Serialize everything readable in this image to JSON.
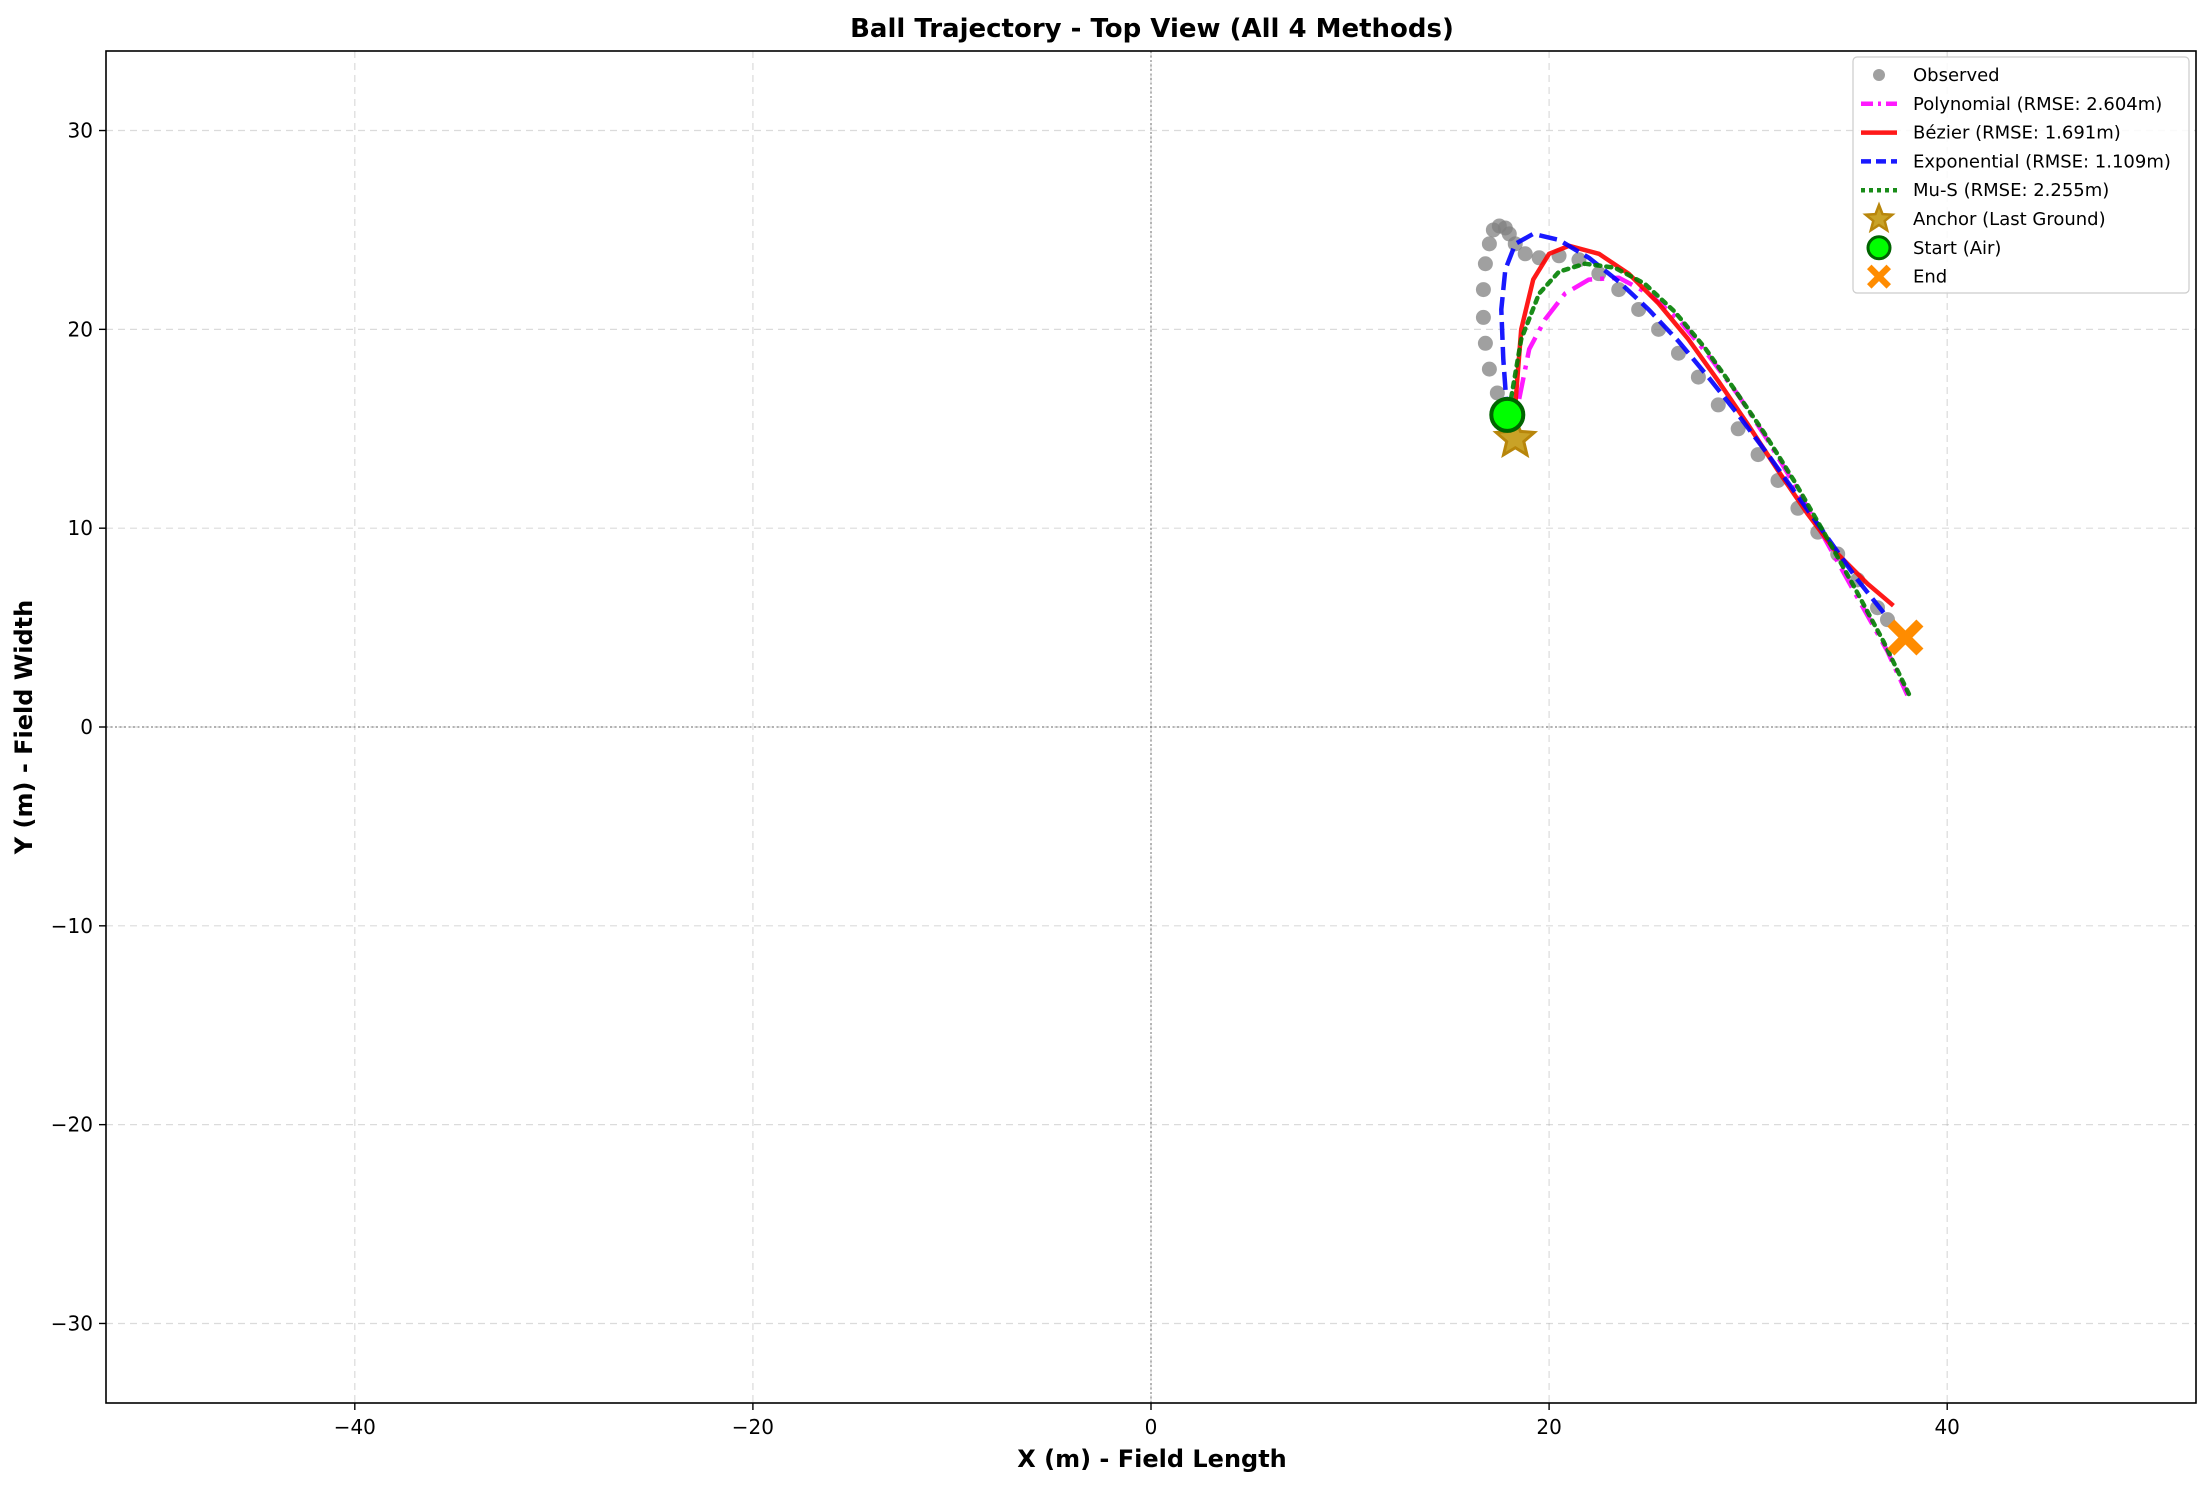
{
  "chart_data": {
    "type": "line",
    "title": "Ball Trajectory - Top View (All 4 Methods)",
    "xlabel": "X (m) - Field Length",
    "ylabel": "Y (m) - Field Width",
    "xlim": [
      -52.5,
      52.5
    ],
    "ylim": [
      -34,
      34
    ],
    "xticks": [
      -40,
      -20,
      0,
      20,
      40
    ],
    "yticks": [
      -30,
      -20,
      -10,
      0,
      10,
      20,
      30
    ],
    "grid": true,
    "legend_position": "top-right",
    "colors": {
      "observed": "#808080",
      "polynomial": "#ff00ff",
      "bezier": "#ff0000",
      "exponential": "#0000ff",
      "mus": "#008000",
      "anchor": "#b8860b",
      "start": "#00ff00",
      "end": "#ff8c00"
    },
    "legend": [
      {
        "key": "observed",
        "label": "Observed",
        "kind": "dot"
      },
      {
        "key": "polynomial",
        "label": "Polynomial (RMSE: 2.604m)",
        "kind": "line",
        "dash": "dashdot"
      },
      {
        "key": "bezier",
        "label": "Bézier (RMSE: 1.691m)",
        "kind": "line",
        "dash": "solid"
      },
      {
        "key": "exponential",
        "label": "Exponential (RMSE: 1.109m)",
        "kind": "line",
        "dash": "dashed"
      },
      {
        "key": "mus",
        "label": "Mu-S (RMSE: 2.255m)",
        "kind": "line",
        "dash": "dotted"
      },
      {
        "key": "anchor",
        "label": "Anchor (Last Ground)",
        "kind": "star"
      },
      {
        "key": "start",
        "label": "Start (Air)",
        "kind": "circle"
      },
      {
        "key": "end",
        "label": "End",
        "kind": "x"
      }
    ],
    "observed": {
      "x": [
        17.9,
        17.4,
        17.0,
        16.8,
        16.7,
        16.7,
        16.8,
        17.0,
        17.2,
        17.5,
        17.8,
        18.0,
        18.3,
        18.8,
        19.5,
        20.5,
        21.5,
        22.5,
        23.5,
        24.5,
        25.5,
        26.5,
        27.5,
        28.5,
        29.5,
        30.5,
        31.5,
        32.5,
        33.5,
        34.5,
        35.5,
        36.5,
        37.0
      ],
      "y": [
        16.0,
        16.8,
        18.0,
        19.3,
        20.6,
        22.0,
        23.3,
        24.3,
        25.0,
        25.2,
        25.1,
        24.8,
        24.3,
        23.8,
        23.6,
        23.7,
        23.5,
        22.8,
        22.0,
        21.0,
        20.0,
        18.8,
        17.6,
        16.2,
        15.0,
        13.7,
        12.4,
        11.0,
        9.8,
        8.7,
        7.4,
        6.0,
        5.4
      ]
    },
    "series": [
      {
        "key": "polynomial",
        "name": "Polynomial (RMSE: 2.604m)",
        "x": [
          18.5,
          19.0,
          19.8,
          20.8,
          22.0,
          23.5,
          25.0,
          26.5,
          28.0,
          29.5,
          31.0,
          32.5,
          34.0,
          35.5,
          37.0,
          38.0
        ],
        "y": [
          16.5,
          19.0,
          20.5,
          21.8,
          22.5,
          22.6,
          21.8,
          20.5,
          18.7,
          16.7,
          14.4,
          11.9,
          9.2,
          6.5,
          3.8,
          1.6
        ]
      },
      {
        "key": "bezier",
        "name": "Bézier (RMSE: 1.691m)",
        "x": [
          18.3,
          18.6,
          19.2,
          20.0,
          21.0,
          22.5,
          24.0,
          25.5,
          27.0,
          28.5,
          30.0,
          31.5,
          33.0,
          34.5,
          36.0,
          37.3
        ],
        "y": [
          16.2,
          20.0,
          22.5,
          23.8,
          24.2,
          23.8,
          22.8,
          21.3,
          19.5,
          17.4,
          15.2,
          12.9,
          10.7,
          8.7,
          7.2,
          6.1
        ]
      },
      {
        "key": "exponential",
        "name": "Exponential (RMSE: 1.109m)",
        "x": [
          17.9,
          17.7,
          17.6,
          17.8,
          18.3,
          19.2,
          20.5,
          22.0,
          23.5,
          25.0,
          26.5,
          28.0,
          29.5,
          31.0,
          32.5,
          34.0,
          35.5,
          37.0
        ],
        "y": [
          15.7,
          18.5,
          21.0,
          23.0,
          24.3,
          24.8,
          24.5,
          23.6,
          22.4,
          21.0,
          19.4,
          17.6,
          15.7,
          13.7,
          11.6,
          9.5,
          7.4,
          5.5
        ]
      },
      {
        "key": "mus",
        "name": "Mu-S (RMSE: 2.255m)",
        "x": [
          18.0,
          18.6,
          19.5,
          20.5,
          21.8,
          23.3,
          24.8,
          26.3,
          27.8,
          29.3,
          30.8,
          32.3,
          33.8,
          35.3,
          36.8,
          38.2
        ],
        "y": [
          16.0,
          19.5,
          21.8,
          22.9,
          23.3,
          23.1,
          22.3,
          20.9,
          19.1,
          17.0,
          14.8,
          12.4,
          9.8,
          7.1,
          4.3,
          1.4
        ]
      }
    ],
    "markers": {
      "anchor": {
        "label": "Anchor (Last Ground)",
        "x": 18.3,
        "y": 14.5
      },
      "start": {
        "label": "Start (Air)",
        "x": 17.9,
        "y": 15.7
      },
      "end": {
        "label": "End",
        "x": 37.9,
        "y": 4.5
      }
    }
  }
}
